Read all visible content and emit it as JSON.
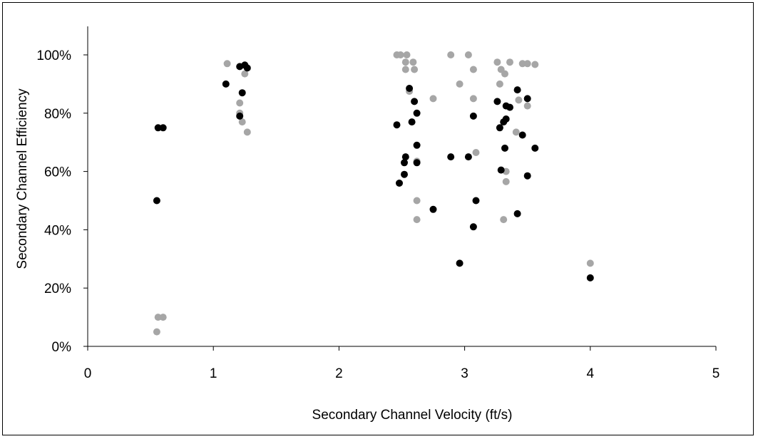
{
  "chart_data": {
    "type": "scatter",
    "title": "",
    "xlabel": "Secondary Channel Velocity (ft/s)",
    "ylabel": "Secondary Channel Efficiency",
    "xlim": [
      0,
      5
    ],
    "ylim": [
      0,
      1.1
    ],
    "x_ticks": [
      0,
      1,
      2,
      3,
      4,
      5
    ],
    "x_tick_labels": [
      "0",
      "1",
      "2",
      "3",
      "4",
      "5"
    ],
    "y_ticks": [
      0,
      0.2,
      0.4,
      0.6,
      0.8,
      1.0
    ],
    "y_tick_labels": [
      "0%",
      "20%",
      "40%",
      "60%",
      "80%",
      "100%"
    ],
    "grid": false,
    "legend": "none",
    "series": [
      {
        "color": "#000000",
        "points": [
          [
            0.55,
            0.5
          ],
          [
            0.56,
            0.75
          ],
          [
            0.6,
            0.75
          ],
          [
            1.1,
            0.9
          ],
          [
            1.21,
            0.79
          ],
          [
            1.21,
            0.96
          ],
          [
            1.23,
            0.87
          ],
          [
            1.25,
            0.965
          ],
          [
            1.27,
            0.955
          ],
          [
            2.46,
            0.76
          ],
          [
            2.48,
            0.56
          ],
          [
            2.52,
            0.59
          ],
          [
            2.52,
            0.63
          ],
          [
            2.53,
            0.65
          ],
          [
            2.56,
            0.885
          ],
          [
            2.58,
            0.77
          ],
          [
            2.6,
            0.84
          ],
          [
            2.62,
            0.8
          ],
          [
            2.62,
            0.69
          ],
          [
            2.62,
            0.63
          ],
          [
            2.75,
            0.47
          ],
          [
            2.89,
            0.65
          ],
          [
            2.96,
            0.285
          ],
          [
            3.03,
            0.65
          ],
          [
            3.07,
            0.79
          ],
          [
            3.07,
            0.41
          ],
          [
            3.09,
            0.5
          ],
          [
            3.26,
            0.84
          ],
          [
            3.28,
            0.75
          ],
          [
            3.29,
            0.605
          ],
          [
            3.31,
            0.77
          ],
          [
            3.32,
            0.68
          ],
          [
            3.33,
            0.78
          ],
          [
            3.33,
            0.825
          ],
          [
            3.36,
            0.82
          ],
          [
            3.42,
            0.88
          ],
          [
            3.42,
            0.455
          ],
          [
            3.46,
            0.725
          ],
          [
            3.5,
            0.85
          ],
          [
            3.5,
            0.585
          ],
          [
            3.56,
            0.68
          ],
          [
            4.0,
            0.235
          ]
        ]
      },
      {
        "color": "#a6a6a6",
        "points": [
          [
            0.55,
            0.05
          ],
          [
            0.56,
            0.1
          ],
          [
            0.6,
            0.1
          ],
          [
            1.11,
            0.97
          ],
          [
            1.21,
            0.835
          ],
          [
            1.21,
            0.8
          ],
          [
            1.23,
            0.77
          ],
          [
            1.25,
            0.935
          ],
          [
            1.27,
            0.735
          ],
          [
            2.46,
            1.0
          ],
          [
            2.49,
            1.0
          ],
          [
            2.53,
            0.95
          ],
          [
            2.53,
            0.975
          ],
          [
            2.54,
            1.0
          ],
          [
            2.56,
            0.875
          ],
          [
            2.59,
            0.975
          ],
          [
            2.6,
            0.95
          ],
          [
            2.62,
            0.635
          ],
          [
            2.62,
            0.5
          ],
          [
            2.62,
            0.435
          ],
          [
            2.75,
            0.85
          ],
          [
            2.89,
            1.0
          ],
          [
            2.96,
            0.9
          ],
          [
            3.03,
            1.0
          ],
          [
            3.07,
            0.95
          ],
          [
            3.07,
            0.85
          ],
          [
            3.09,
            0.665
          ],
          [
            3.26,
            0.975
          ],
          [
            3.28,
            0.9
          ],
          [
            3.29,
            0.95
          ],
          [
            3.31,
            0.435
          ],
          [
            3.32,
            0.935
          ],
          [
            3.33,
            0.6
          ],
          [
            3.33,
            0.565
          ],
          [
            3.36,
            0.975
          ],
          [
            3.41,
            0.735
          ],
          [
            3.43,
            0.845
          ],
          [
            3.46,
            0.97
          ],
          [
            3.5,
            0.97
          ],
          [
            3.5,
            0.825
          ],
          [
            3.56,
            0.967
          ],
          [
            4.0,
            0.285
          ]
        ]
      }
    ]
  }
}
